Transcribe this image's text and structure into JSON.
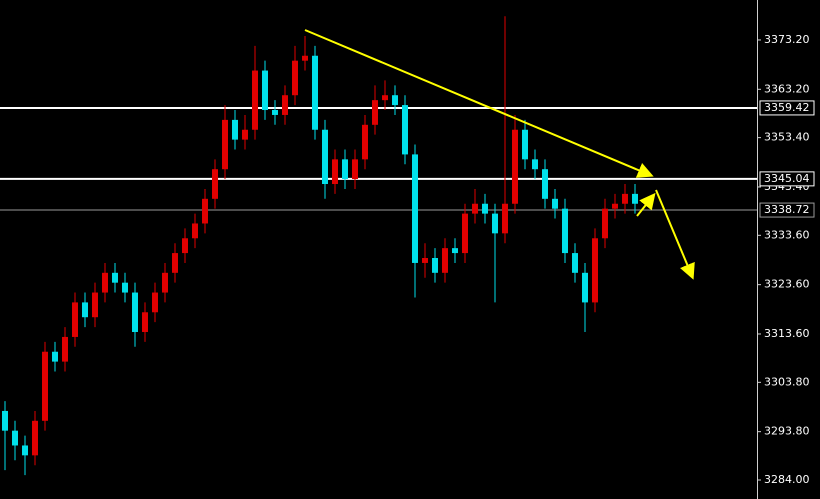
{
  "chart_data": {
    "type": "candlestick",
    "up_color": "#e00000",
    "down_color": "#00e0ea",
    "open": [
      3298,
      3294,
      3291,
      3289,
      3296,
      3310,
      3308,
      3313,
      3320,
      3317,
      3322,
      3326,
      3324,
      3322,
      3314,
      3318,
      3322,
      3326,
      3330,
      3333,
      3336,
      3341,
      3347,
      3357,
      3353,
      3355,
      3367,
      3359,
      3358,
      3362,
      3369,
      3370,
      3355,
      3344,
      3349,
      3345,
      3349,
      3356,
      3361,
      3362,
      3360,
      3350,
      3328,
      3329,
      3326,
      3331,
      3330,
      3338,
      3340,
      3338,
      3334,
      3340,
      3355,
      3349,
      3347,
      3341,
      3339,
      3330,
      3326,
      3320,
      3333,
      3339,
      3340,
      3342
    ],
    "high": [
      3300,
      3296,
      3293,
      3298,
      3312,
      3312,
      3315,
      3322,
      3322,
      3324,
      3328,
      3328,
      3326,
      3324,
      3320,
      3324,
      3328,
      3332,
      3335,
      3338,
      3343,
      3349,
      3360,
      3359,
      3358,
      3372,
      3369,
      3361,
      3364,
      3372,
      3374,
      3372,
      3357,
      3351,
      3351,
      3351,
      3358,
      3364,
      3365,
      3364,
      3362,
      3352,
      3332,
      3331,
      3333,
      3333,
      3340,
      3343,
      3342,
      3340,
      3378,
      3358,
      3357,
      3351,
      3349,
      3343,
      3341,
      3332,
      3328,
      3335,
      3341,
      3342,
      3344,
      3344
    ],
    "low": [
      3286,
      3288,
      3285,
      3287,
      3294,
      3306,
      3306,
      3311,
      3315,
      3315,
      3320,
      3322,
      3320,
      3311,
      3312,
      3316,
      3320,
      3324,
      3328,
      3331,
      3334,
      3339,
      3345,
      3351,
      3351,
      3353,
      3357,
      3356,
      3356,
      3360,
      3367,
      3353,
      3341,
      3342,
      3343,
      3343,
      3347,
      3354,
      3359,
      3358,
      3348,
      3321,
      3325,
      3324,
      3324,
      3328,
      3328,
      3336,
      3336,
      3320,
      3332,
      3338,
      3347,
      3345,
      3339,
      3337,
      3328,
      3324,
      3314,
      3318,
      3331,
      3337,
      3338,
      3338
    ],
    "close": [
      3294,
      3291,
      3289,
      3296,
      3310,
      3308,
      3313,
      3320,
      3317,
      3322,
      3326,
      3324,
      3322,
      3314,
      3318,
      3322,
      3326,
      3330,
      3333,
      3336,
      3341,
      3347,
      3357,
      3353,
      3355,
      3367,
      3359,
      3358,
      3362,
      3369,
      3370,
      3355,
      3344,
      3349,
      3345,
      3349,
      3356,
      3361,
      3362,
      3360,
      3350,
      3328,
      3329,
      3326,
      3331,
      3330,
      3338,
      3340,
      3338,
      3334,
      3340,
      3355,
      3349,
      3347,
      3341,
      3339,
      3330,
      3326,
      3320,
      3333,
      3339,
      3340,
      3342,
      3340
    ],
    "ylim": [
      3280.15,
      3381.3
    ],
    "yticks": [
      {
        "value": 3373.2,
        "label": "3373.20"
      },
      {
        "value": 3363.2,
        "label": "3363.20"
      },
      {
        "value": 3353.4,
        "label": "3353.40"
      },
      {
        "value": 3343.4,
        "label": "3343.40"
      },
      {
        "value": 3333.6,
        "label": "3333.60"
      },
      {
        "value": 3323.6,
        "label": "3323.60"
      },
      {
        "value": 3313.6,
        "label": "3313.60"
      },
      {
        "value": 3303.8,
        "label": "3303.80"
      },
      {
        "value": 3293.8,
        "label": "3293.80"
      },
      {
        "value": 3284.0,
        "label": "3284.00"
      }
    ],
    "levels": [
      {
        "value": 3359.42,
        "color": "#ffffff"
      },
      {
        "value": 3345.04,
        "color": "#ffffff"
      },
      {
        "value": 3338.72,
        "color": "#9a9a9a"
      }
    ]
  }
}
